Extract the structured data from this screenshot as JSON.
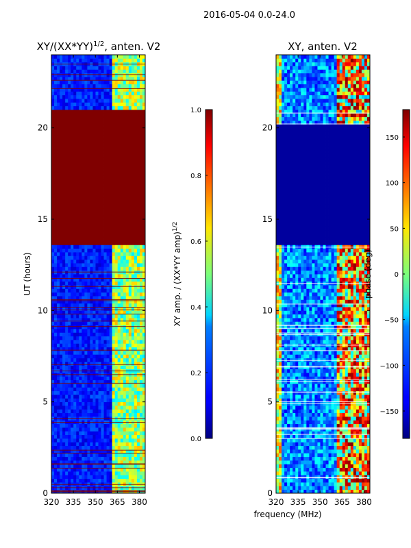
{
  "suptitle": "2016-05-04 0.0-24.0",
  "chart_data": [
    {
      "type": "heatmap",
      "title_prefix": "XY/(XX*YY)",
      "title_sup": "1/2",
      "title_suffix": ", anten. V2",
      "ylabel": "UT (hours)",
      "xlim": [
        320,
        384
      ],
      "ylim": [
        0,
        24
      ],
      "x_ticks": [
        "320",
        "335",
        "350",
        "365",
        "380"
      ],
      "y_ticks": [
        "0",
        "5",
        "10",
        "15",
        "20"
      ],
      "colorbar": {
        "label_prefix": "XY amp. / (XX*YY amp)",
        "label_sup": "1/2",
        "range": [
          0.0,
          1.0
        ],
        "ticks": [
          "0.0",
          "0.2",
          "0.4",
          "0.6",
          "0.8",
          "1.0"
        ]
      }
    },
    {
      "type": "heatmap",
      "title": "XY, anten. V2",
      "xlabel": "frequency (MHz)",
      "xlim": [
        320,
        384
      ],
      "ylim": [
        0,
        24
      ],
      "x_ticks": [
        "320",
        "335",
        "350",
        "365",
        "380"
      ],
      "y_ticks": [
        "0",
        "5",
        "10",
        "15",
        "20"
      ],
      "colorbar": {
        "label": "phase (deg)",
        "range": [
          -180,
          180
        ],
        "ticks": [
          "-150",
          "-100",
          "-50",
          "0",
          "50",
          "100",
          "150"
        ]
      }
    }
  ],
  "colors": {
    "background": "#ffffff",
    "masked": "#800000",
    "low": "#00008f",
    "high": "#7f0000"
  }
}
